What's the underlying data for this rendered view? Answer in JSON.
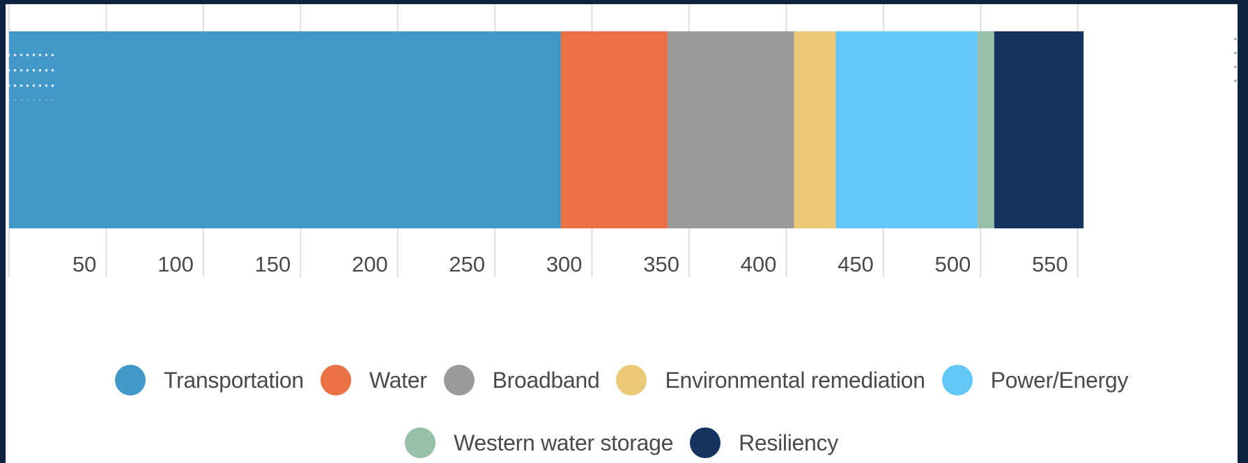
{
  "chart_data": {
    "type": "bar",
    "orientation": "horizontal",
    "stacked": true,
    "title": "",
    "xlabel": "",
    "ylabel": "",
    "xlim": [
      0,
      560
    ],
    "xticks": [
      50,
      100,
      150,
      200,
      250,
      300,
      350,
      400,
      450,
      500,
      550
    ],
    "grid": true,
    "legend_position": "bottom",
    "series": [
      {
        "name": "Transportation",
        "value": 284,
        "color": "#4298c8"
      },
      {
        "name": "Water",
        "value": 55,
        "color": "#ea7145"
      },
      {
        "name": "Broadband",
        "value": 65,
        "color": "#9a9a9a"
      },
      {
        "name": "Environmental remediation",
        "value": 21.5,
        "color": "#ebc976"
      },
      {
        "name": "Power/Energy",
        "value": 73,
        "color": "#62c8f8"
      },
      {
        "name": "Western water storage",
        "value": 8.5,
        "color": "#96c1a8"
      },
      {
        "name": "Resiliency",
        "value": 46,
        "color": "#143360"
      }
    ]
  }
}
